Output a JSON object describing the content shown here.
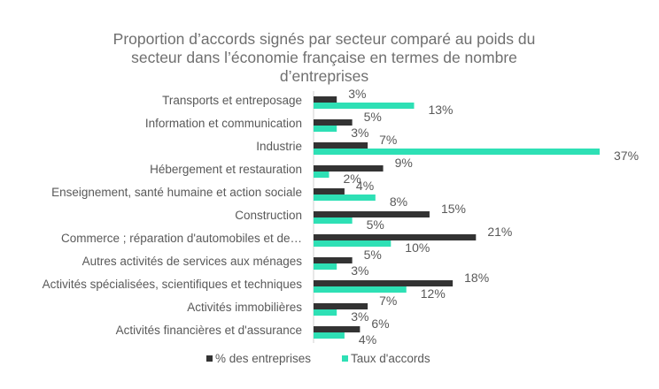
{
  "chart_data": {
    "type": "bar",
    "orientation": "horizontal",
    "title_lines": [
      "Proportion d’accords signés par secteur comparé au poids du",
      "secteur dans l’économie française en termes de nombre",
      "d’entreprises"
    ],
    "categories": [
      "Transports et entreposage",
      "Information et communication",
      "Industrie",
      "Hébergement et restauration",
      "Enseignement, santé humaine et action sociale",
      "Construction",
      "Commerce ; réparation d'automobiles et de…",
      "Autres activités de services aux ménages",
      "Activités spécialisées, scientifiques et techniques",
      "Activités immobilières",
      "Activités financières et d'assurance"
    ],
    "series": [
      {
        "name": "% des entreprises",
        "color": "#333333",
        "values": [
          3,
          5,
          7,
          9,
          4,
          15,
          21,
          5,
          18,
          7,
          6
        ]
      },
      {
        "name": "Taux d'accords",
        "color": "#2ee0b5",
        "values": [
          13,
          3,
          37,
          2,
          8,
          5,
          10,
          3,
          12,
          3,
          4
        ]
      }
    ],
    "value_suffix": "%",
    "xlim": [
      0,
      37
    ],
    "grid": false,
    "legend_position": "bottom"
  }
}
